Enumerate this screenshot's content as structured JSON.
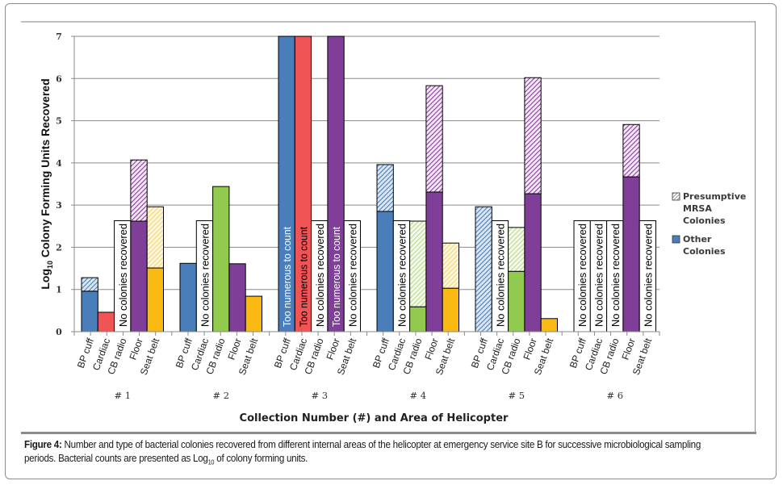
{
  "figure": {
    "caption_label": "Figure 4:",
    "caption_text_1": " Number and type of bacterial colonies recovered from different internal areas of the helicopter at emergency service site B for successive microbiological sampling periods. Bacterial counts are presented as Log",
    "caption_sub": "10",
    "caption_text_2": " of colony forming units."
  },
  "chart_data": {
    "type": "bar",
    "stacked": true,
    "title": "",
    "xlabel": "Collection Number (#) and Area of Helicopter",
    "ylabel": "Log10 Colony Forming Units Recovered",
    "ylabel_base": "Log",
    "ylabel_sub": "10",
    "ylabel_rest": " Colony Forming Units Recovered",
    "ylim": [
      0,
      7
    ],
    "yticks": [
      "0",
      "1",
      "2",
      "3",
      "4",
      "5",
      "6",
      "7"
    ],
    "grid": true,
    "legend_position": "right",
    "legend": [
      {
        "name": "Presumptive MRSA Colonies",
        "lines": [
          "Presumptive",
          "MRSA",
          "Colonies"
        ],
        "pattern": "hatched"
      },
      {
        "name": "Other Colonies",
        "lines": [
          "Other",
          "Colonies"
        ],
        "pattern": "solid"
      }
    ],
    "areas": [
      "BP cuff",
      "Cardiac",
      "CB radio",
      "Floor",
      "Seat belt"
    ],
    "area_colors": {
      "BP cuff": "#4a7ebb",
      "Cardiac": "#f05454",
      "CB radio": "#92c94f",
      "Floor": "#7f3f98",
      "Seat belt": "#f9b912"
    },
    "annotations": {
      "none": "No colonies recovered",
      "tntc": "Too numerous to count"
    },
    "groups": [
      {
        "label": "# 1",
        "bars": [
          {
            "area": "BP cuff",
            "other": 0.96,
            "mrsa": 0.32
          },
          {
            "area": "Cardiac",
            "other": 0.46,
            "mrsa": 0
          },
          {
            "area": "CB radio",
            "status": "none"
          },
          {
            "area": "Floor",
            "other": 2.62,
            "mrsa": 1.45
          },
          {
            "area": "Seat belt",
            "other": 1.51,
            "mrsa": 1.45
          }
        ]
      },
      {
        "label": "# 2",
        "bars": [
          {
            "area": "BP cuff",
            "other": 1.62,
            "mrsa": 0
          },
          {
            "area": "Cardiac",
            "status": "none"
          },
          {
            "area": "CB radio",
            "other": 3.44,
            "mrsa": 0
          },
          {
            "area": "Floor",
            "other": 1.61,
            "mrsa": 0
          },
          {
            "area": "Seat belt",
            "other": 0.84,
            "mrsa": 0
          }
        ]
      },
      {
        "label": "# 3",
        "bars": [
          {
            "area": "BP cuff",
            "status": "tntc",
            "other": 7,
            "mrsa": 0
          },
          {
            "area": "Cardiac",
            "status": "tntc",
            "other": 7,
            "mrsa": 0
          },
          {
            "area": "CB radio",
            "status": "none"
          },
          {
            "area": "Floor",
            "status": "tntc",
            "other": 7,
            "mrsa": 0
          },
          {
            "area": "Seat belt",
            "status": "none"
          }
        ]
      },
      {
        "label": "# 4",
        "bars": [
          {
            "area": "BP cuff",
            "other": 2.85,
            "mrsa": 1.11
          },
          {
            "area": "Cardiac",
            "status": "none"
          },
          {
            "area": "CB radio",
            "other": 0.59,
            "mrsa": 2.03
          },
          {
            "area": "Floor",
            "other": 3.31,
            "mrsa": 2.52
          },
          {
            "area": "Seat belt",
            "other": 1.03,
            "mrsa": 1.07
          }
        ]
      },
      {
        "label": "# 5",
        "bars": [
          {
            "area": "BP cuff",
            "other": 0,
            "mrsa": 2.96
          },
          {
            "area": "Cardiac",
            "status": "none"
          },
          {
            "area": "CB radio",
            "other": 1.43,
            "mrsa": 1.04
          },
          {
            "area": "Floor",
            "other": 3.27,
            "mrsa": 2.75
          },
          {
            "area": "Seat belt",
            "other": 0.31,
            "mrsa": 0
          }
        ]
      },
      {
        "label": "# 6",
        "bars": [
          {
            "area": "BP cuff",
            "status": "none"
          },
          {
            "area": "Cardiac",
            "status": "none"
          },
          {
            "area": "CB radio",
            "status": "none"
          },
          {
            "area": "Floor",
            "other": 3.67,
            "mrsa": 1.24
          },
          {
            "area": "Seat belt",
            "status": "none"
          }
        ]
      }
    ],
    "none_bar_height": 2.63
  }
}
